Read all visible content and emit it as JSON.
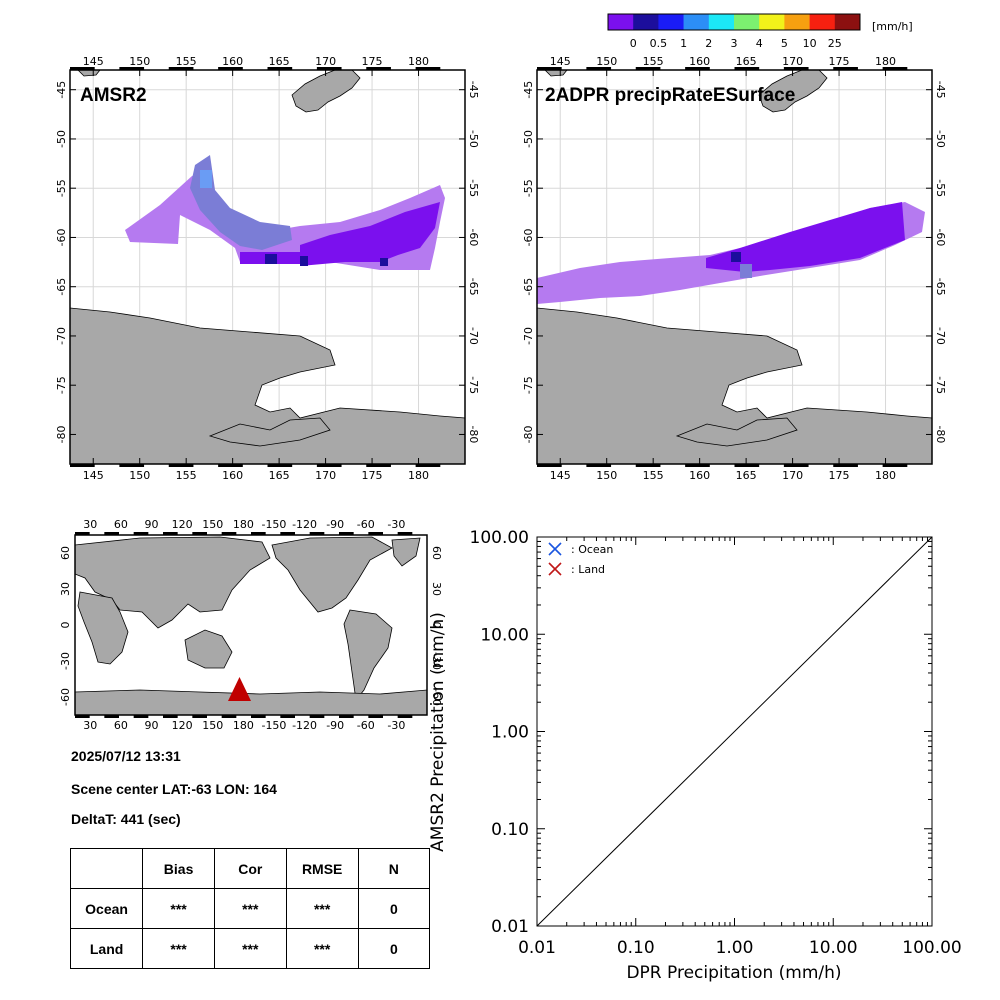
{
  "colorbar": {
    "unit": "[mm/h]",
    "labels": [
      "0",
      "0.5",
      "1",
      "2",
      "3",
      "4",
      "5",
      "10",
      "25"
    ],
    "colors": [
      "#7b10ee",
      "#1c0e9c",
      "#1a1cf6",
      "#2c8ef6",
      "#1ce8f6",
      "#7cf070",
      "#f2f21a",
      "#f6a010",
      "#f62010",
      "#8c1010"
    ]
  },
  "maps": {
    "lon_ticks": [
      "145",
      "150",
      "155",
      "160",
      "165",
      "170",
      "175",
      "180"
    ],
    "lat_ticks": [
      "-45",
      "-50",
      "-55",
      "-60",
      "-65",
      "-70",
      "-75",
      "-80"
    ],
    "left_title": "AMSR2",
    "right_title": "2ADPR precipRateESurface",
    "land_color": "#a8a8a8",
    "light_rain_color": "#b57af0",
    "rain_color": "#7b10ee"
  },
  "world_map": {
    "lon_ticks": [
      "30",
      "60",
      "90",
      "120",
      "150",
      "180",
      "-150",
      "-120",
      "-90",
      "-60",
      "-30"
    ],
    "lat_ticks": [
      "60",
      "30",
      "0",
      "-30",
      "-60"
    ],
    "marker_color": "#c00000"
  },
  "info": {
    "datetime": "2025/07/12 13:31",
    "scene_center": "Scene center LAT:-63   LON: 164",
    "delta_t": "DeltaT:  441 (sec)"
  },
  "stats_table": {
    "headers": [
      "",
      "Bias",
      "Cor",
      "RMSE",
      "N"
    ],
    "rows": [
      {
        "label": "Ocean",
        "bias": "***",
        "cor": "***",
        "rmse": "***",
        "n": "0"
      },
      {
        "label": "Land",
        "bias": "***",
        "cor": "***",
        "rmse": "***",
        "n": "0"
      }
    ]
  },
  "chart_data": {
    "type": "scatter",
    "xlabel": "DPR Precipitation (mm/h)",
    "ylabel": "AMSR2 Precipitation (mm/h)",
    "xscale": "log",
    "yscale": "log",
    "xlim": [
      0.01,
      100
    ],
    "ylim": [
      0.01,
      100
    ],
    "x_ticks": [
      "0.01",
      "0.10",
      "1.00",
      "10.00",
      "100.00"
    ],
    "y_ticks": [
      "0.01",
      "0.10",
      "1.00",
      "10.00",
      "100.00"
    ],
    "reference_line": "1:1",
    "legend_position": "top-left",
    "series": [
      {
        "name": ": Ocean",
        "marker": "x",
        "color": "#1a55e0",
        "points": []
      },
      {
        "name": ": Land",
        "marker": "x",
        "color": "#c01818",
        "points": []
      }
    ]
  }
}
